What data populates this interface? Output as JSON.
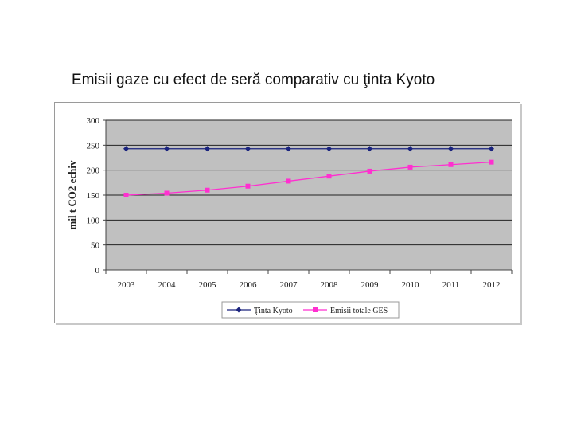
{
  "title": "Emisii gaze cu efect de seră comparativ cu ţinta Kyoto",
  "chart_data": {
    "type": "line",
    "title": "",
    "xlabel": "",
    "ylabel": "mil t CO2 echiv",
    "categories": [
      "2003",
      "2004",
      "2005",
      "2006",
      "2007",
      "2008",
      "2009",
      "2010",
      "2011",
      "2012"
    ],
    "ylim": [
      0,
      300
    ],
    "yticks": [
      0,
      50,
      100,
      150,
      200,
      250,
      300
    ],
    "ytick_labels": [
      "0",
      "50",
      "100",
      "150",
      "200",
      "250",
      "300"
    ],
    "grid": true,
    "legend_position": "bottom",
    "plot_background": "#c0c0c0",
    "series": [
      {
        "name": "Ţinta Kyoto",
        "color": "#1a237e",
        "marker": "diamond",
        "values": [
          243,
          243,
          243,
          243,
          243,
          243,
          243,
          243,
          243,
          243
        ]
      },
      {
        "name": "Emisii totale GES",
        "color": "#ff2fd0",
        "marker": "square",
        "values": [
          150,
          154,
          160,
          168,
          178,
          188,
          198,
          206,
          211,
          216
        ]
      }
    ]
  }
}
